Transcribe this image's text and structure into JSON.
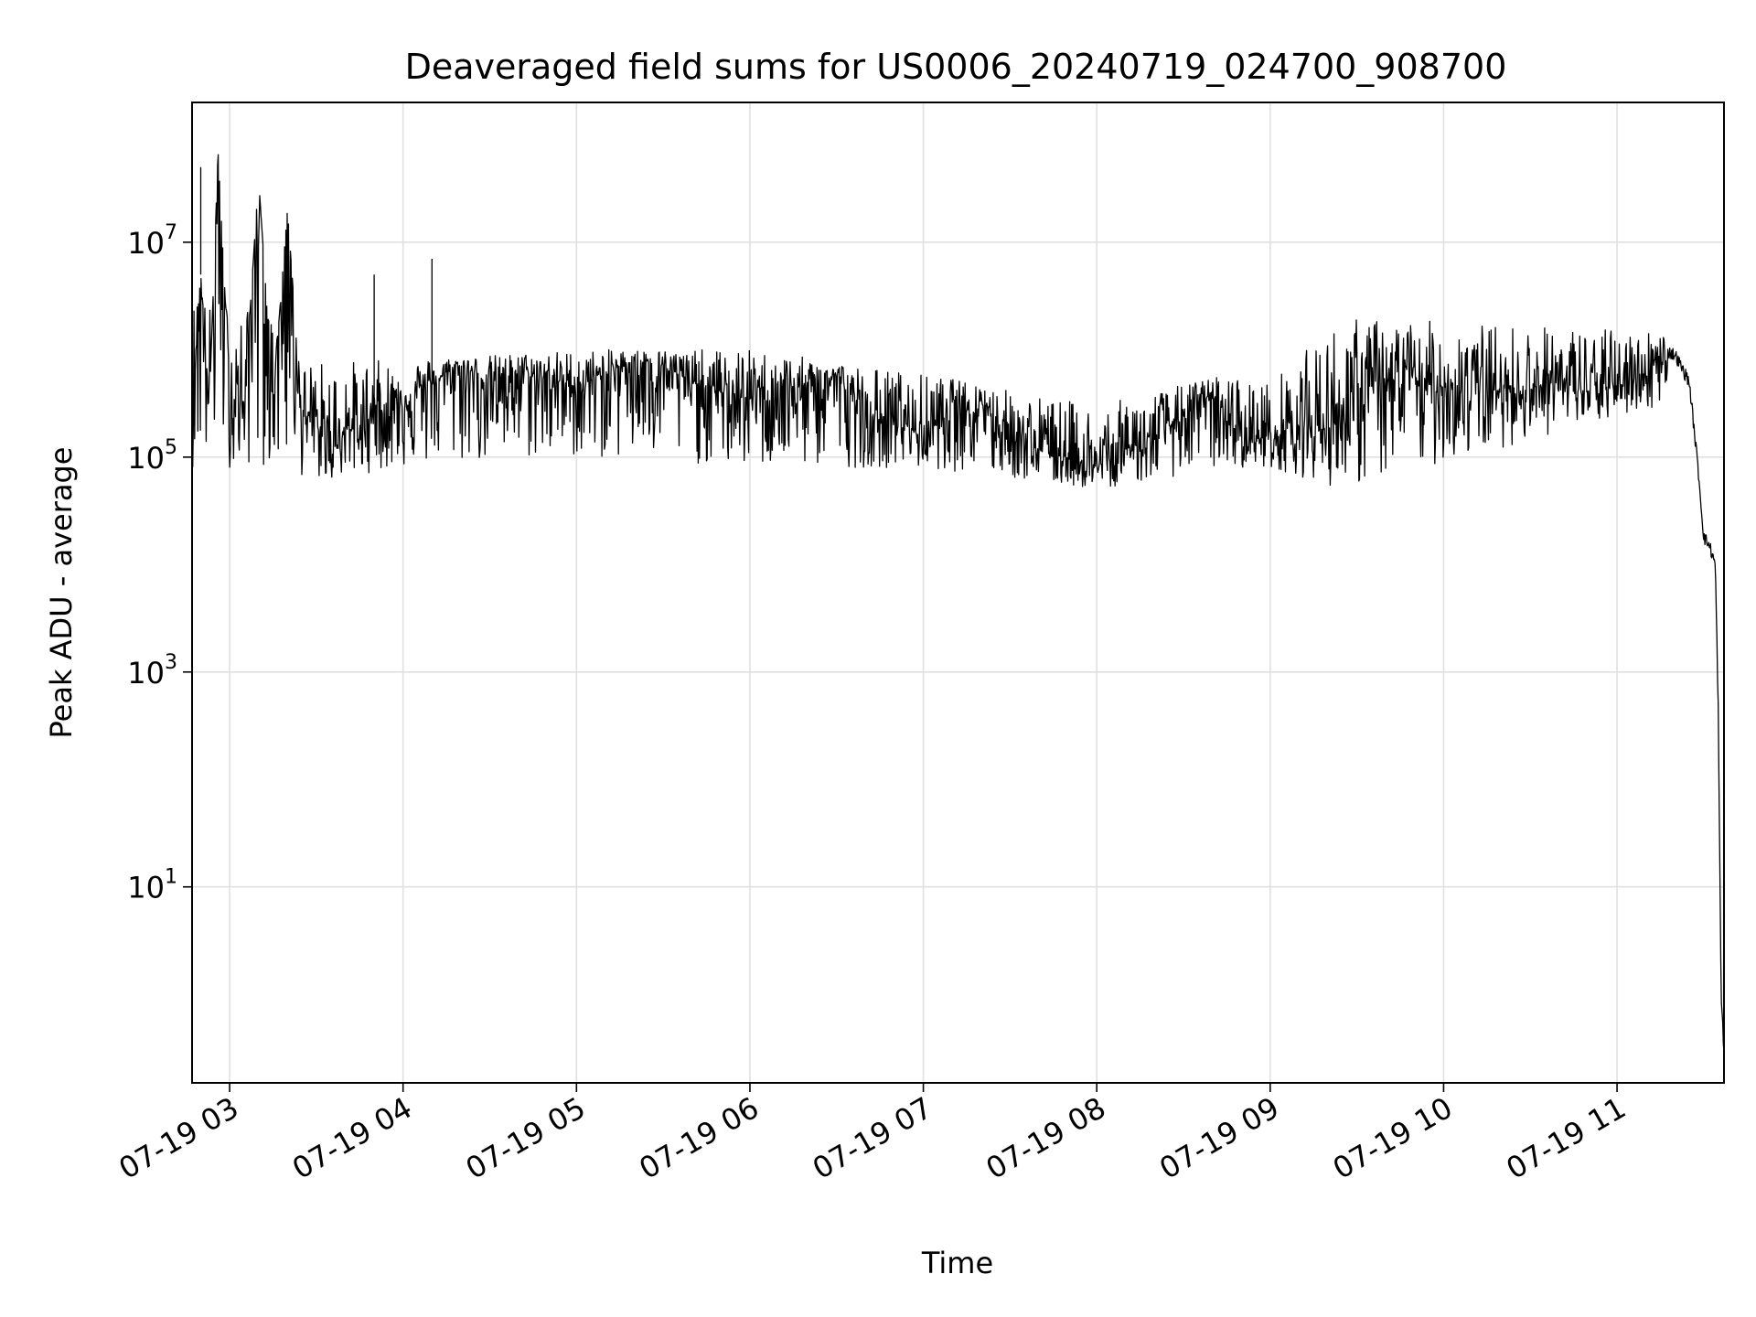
{
  "chart_data": {
    "type": "line",
    "title": "Deaveraged field sums for US0006_20240719_024700_908700",
    "xlabel": "Time",
    "ylabel": "Peak ADU - average",
    "y_scale": "log",
    "ylim": [
      0.15,
      200000000.0
    ],
    "xlim": [
      "2024-07-19 02:47",
      "2024-07-19 11:37"
    ],
    "grid": true,
    "legend": "none",
    "colors": {
      "line": "#000000",
      "grid": "#e0e0e0",
      "axes": "#000000"
    },
    "x_ticks": [
      {
        "t": "2024-07-19 03:00",
        "label": "07-19 03"
      },
      {
        "t": "2024-07-19 04:00",
        "label": "07-19 04"
      },
      {
        "t": "2024-07-19 05:00",
        "label": "07-19 05"
      },
      {
        "t": "2024-07-19 06:00",
        "label": "07-19 06"
      },
      {
        "t": "2024-07-19 07:00",
        "label": "07-19 07"
      },
      {
        "t": "2024-07-19 08:00",
        "label": "07-19 08"
      },
      {
        "t": "2024-07-19 09:00",
        "label": "07-19 09"
      },
      {
        "t": "2024-07-19 10:00",
        "label": "07-19 10"
      },
      {
        "t": "2024-07-19 11:00",
        "label": "07-19 11"
      }
    ],
    "y_ticks": [
      {
        "value": 10,
        "base": "10",
        "exp": "1"
      },
      {
        "value": 1000,
        "base": "10",
        "exp": "3"
      },
      {
        "value": 100000,
        "base": "10",
        "exp": "5"
      },
      {
        "value": 10000000,
        "base": "10",
        "exp": "7"
      }
    ],
    "series": [
      {
        "x": [
          "2024-07-19 02:47",
          "2024-07-19 02:50",
          "2024-07-19 02:53",
          "2024-07-19 02:56",
          "2024-07-19 03:00",
          "2024-07-19 03:05",
          "2024-07-19 03:10",
          "2024-07-19 03:15",
          "2024-07-19 03:20",
          "2024-07-19 03:25",
          "2024-07-19 03:30",
          "2024-07-19 03:35",
          "2024-07-19 03:40",
          "2024-07-19 03:45",
          "2024-07-19 03:50",
          "2024-07-19 03:55",
          "2024-07-19 04:00",
          "2024-07-19 04:10",
          "2024-07-19 04:20",
          "2024-07-19 04:30",
          "2024-07-19 04:40",
          "2024-07-19 04:50",
          "2024-07-19 05:00",
          "2024-07-19 05:10",
          "2024-07-19 05:20",
          "2024-07-19 05:30",
          "2024-07-19 05:40",
          "2024-07-19 05:50",
          "2024-07-19 06:00",
          "2024-07-19 06:10",
          "2024-07-19 06:20",
          "2024-07-19 06:30",
          "2024-07-19 06:40",
          "2024-07-19 06:50",
          "2024-07-19 07:00",
          "2024-07-19 07:10",
          "2024-07-19 07:20",
          "2024-07-19 07:30",
          "2024-07-19 07:40",
          "2024-07-19 07:50",
          "2024-07-19 08:00",
          "2024-07-19 08:10",
          "2024-07-19 08:20",
          "2024-07-19 08:30",
          "2024-07-19 08:40",
          "2024-07-19 08:50",
          "2024-07-19 09:00",
          "2024-07-19 09:10",
          "2024-07-19 09:20",
          "2024-07-19 09:30",
          "2024-07-19 09:40",
          "2024-07-19 09:50",
          "2024-07-19 10:00",
          "2024-07-19 10:10",
          "2024-07-19 10:20",
          "2024-07-19 10:30",
          "2024-07-19 10:40",
          "2024-07-19 10:50",
          "2024-07-19 11:00",
          "2024-07-19 11:10",
          "2024-07-19 11:15",
          "2024-07-19 11:20",
          "2024-07-19 11:25",
          "2024-07-19 11:28",
          "2024-07-19 11:30",
          "2024-07-19 11:32",
          "2024-07-19 11:34",
          "2024-07-19 11:35",
          "2024-07-19 11:36",
          "2024-07-19 11:37"
        ],
        "y": [
          400000,
          5000000,
          300000,
          70000000,
          400000,
          300000,
          40000000,
          350000,
          20000000,
          250000,
          200000,
          100000,
          200000,
          150000,
          300000,
          250000,
          350000,
          500000,
          700000,
          500000,
          600000,
          550000,
          450000,
          600000,
          800000,
          700000,
          500000,
          400000,
          350000,
          450000,
          400000,
          600000,
          200000,
          250000,
          150000,
          300000,
          350000,
          150000,
          120000,
          100000,
          80000,
          120000,
          150000,
          250000,
          350000,
          150000,
          150000,
          200000,
          180000,
          400000,
          500000,
          500000,
          450000,
          500000,
          400000,
          450000,
          500000,
          400000,
          450000,
          600000,
          1000000,
          900000,
          500000,
          80000,
          18000,
          15000,
          10000,
          500,
          1,
          0.3
        ],
        "noise": {
          "upper": [
            "2024-07-19 02:47",
            3000000,
            "2024-07-19 03:15",
            2000000,
            "2024-07-19 03:25",
            800000,
            "2024-07-19 04:00",
            800000,
            "2024-07-19 05:00",
            1000000,
            "2024-07-19 06:00",
            1000000,
            "2024-07-19 07:00",
            600000,
            "2024-07-19 08:00",
            300000,
            "2024-07-19 08:45",
            600000,
            "2024-07-19 09:00",
            500000,
            "2024-07-19 09:25",
            2000000,
            "2024-07-19 11:15",
            1500000
          ],
          "lower": [
            "2024-07-19 02:47",
            80000,
            "2024-07-19 03:15",
            80000,
            "2024-07-19 03:30",
            60000,
            "2024-07-19 04:00",
            80000,
            "2024-07-19 05:00",
            100000,
            "2024-07-19 06:00",
            80000,
            "2024-07-19 07:00",
            80000,
            "2024-07-19 08:00",
            50000,
            "2024-07-19 08:45",
            80000,
            "2024-07-19 09:00",
            80000,
            "2024-07-19 09:25",
            50000,
            "2024-07-19 11:15",
            300000
          ]
        }
      }
    ]
  }
}
